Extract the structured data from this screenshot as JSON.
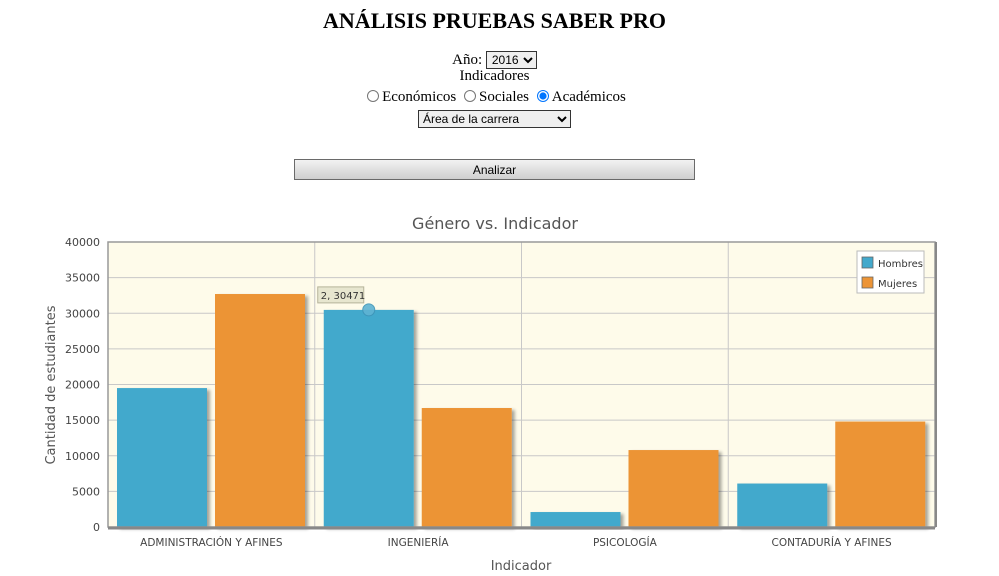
{
  "page": {
    "title": "ANÁLISIS PRUEBAS SABER PRO",
    "year_label": "Año:",
    "year_value": "2016",
    "indicators_label": "Indicadores",
    "radios": [
      {
        "label": "Económicos",
        "checked": false
      },
      {
        "label": "Sociales",
        "checked": false
      },
      {
        "label": "Académicos",
        "checked": true
      }
    ],
    "area_select": "Área de la carrera",
    "analyze_button": "Analizar"
  },
  "chart_data": {
    "type": "bar",
    "title": "Género vs. Indicador",
    "xlabel": "Indicador",
    "ylabel": "Cantidad de estudiantes",
    "categories": [
      "ADMINISTRACIÓN Y AFINES",
      "INGENIERÍA",
      "PSICOLOGÍA",
      "CONTADURÍA Y AFINES"
    ],
    "series": [
      {
        "name": "Hombres",
        "color": "#43a9cc",
        "values": [
          19500,
          30471,
          2100,
          6100
        ]
      },
      {
        "name": "Mujeres",
        "color": "#ec9436",
        "values": [
          32700,
          16700,
          10800,
          14800
        ]
      }
    ],
    "ylim": [
      0,
      40000
    ],
    "yticks": [
      "0",
      "5000",
      "10000",
      "15000",
      "20000",
      "25000",
      "30000",
      "35000",
      "40000"
    ],
    "grid": true,
    "legend_position": "top-right",
    "tooltip": "2, 30471",
    "plot_background": "#fefbea"
  }
}
